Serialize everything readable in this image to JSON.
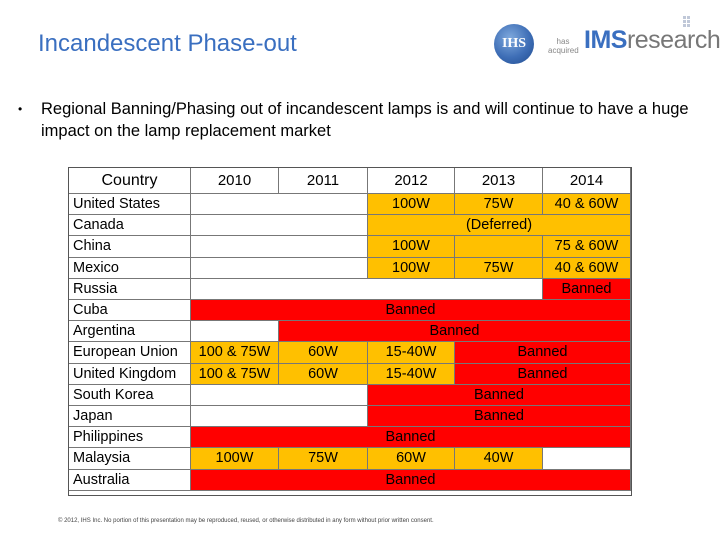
{
  "slide": {
    "title": "Incandescent Phase-out",
    "bullet": "Regional Banning/Phasing out of incandescent lamps is and will continue to have a huge impact on the lamp replacement market",
    "footer": "© 2012, IHS Inc. No portion of this presentation may be reproduced, reused, or otherwise distributed in any form without prior written consent."
  },
  "logos": {
    "ihs": "IHS",
    "has_acquired": "has acquired",
    "ims_bold": "IMS",
    "ims_rest": "research"
  },
  "table": {
    "headers": [
      "Country",
      "2010",
      "2011",
      "2012",
      "2013",
      "2014"
    ],
    "rows": [
      {
        "country": "United States",
        "cells": [
          {
            "span": 2,
            "text": "",
            "color": "white"
          },
          {
            "span": 1,
            "text": "100W",
            "color": "yellow"
          },
          {
            "span": 1,
            "text": "75W",
            "color": "yellow"
          },
          {
            "span": 1,
            "text": "40 & 60W",
            "color": "yellow"
          }
        ]
      },
      {
        "country": "Canada",
        "cells": [
          {
            "span": 2,
            "text": "",
            "color": "white"
          },
          {
            "span": 3,
            "text": "(Deferred)",
            "color": "yellow"
          }
        ]
      },
      {
        "country": "China",
        "cells": [
          {
            "span": 2,
            "text": "",
            "color": "white"
          },
          {
            "span": 1,
            "text": "100W",
            "color": "yellow"
          },
          {
            "span": 1,
            "text": "",
            "color": "yellow"
          },
          {
            "span": 1,
            "text": "75 & 60W",
            "color": "yellow"
          }
        ]
      },
      {
        "country": "Mexico",
        "cells": [
          {
            "span": 2,
            "text": "",
            "color": "white"
          },
          {
            "span": 1,
            "text": "100W",
            "color": "yellow"
          },
          {
            "span": 1,
            "text": "75W",
            "color": "yellow"
          },
          {
            "span": 1,
            "text": "40 & 60W",
            "color": "yellow"
          }
        ]
      },
      {
        "country": "Russia",
        "cells": [
          {
            "span": 4,
            "text": "",
            "color": "white"
          },
          {
            "span": 1,
            "text": "Banned",
            "color": "red"
          }
        ]
      },
      {
        "country": "Cuba",
        "cells": [
          {
            "span": 5,
            "text": "Banned",
            "color": "red"
          }
        ]
      },
      {
        "country": "Argentina",
        "cells": [
          {
            "span": 1,
            "text": "",
            "color": "white"
          },
          {
            "span": 4,
            "text": "Banned",
            "color": "red"
          }
        ]
      },
      {
        "country": "European Union",
        "cells": [
          {
            "span": 1,
            "text": "100 & 75W",
            "color": "yellow"
          },
          {
            "span": 1,
            "text": "60W",
            "color": "yellow"
          },
          {
            "span": 1,
            "text": "15-40W",
            "color": "yellow"
          },
          {
            "span": 2,
            "text": "Banned",
            "color": "red"
          }
        ]
      },
      {
        "country": "United Kingdom",
        "cells": [
          {
            "span": 1,
            "text": "100 & 75W",
            "color": "yellow"
          },
          {
            "span": 1,
            "text": "60W",
            "color": "yellow"
          },
          {
            "span": 1,
            "text": "15-40W",
            "color": "yellow"
          },
          {
            "span": 2,
            "text": "Banned",
            "color": "red"
          }
        ]
      },
      {
        "country": "South Korea",
        "cells": [
          {
            "span": 2,
            "text": "",
            "color": "white"
          },
          {
            "span": 3,
            "text": "Banned",
            "color": "red"
          }
        ]
      },
      {
        "country": "Japan",
        "cells": [
          {
            "span": 2,
            "text": "",
            "color": "white"
          },
          {
            "span": 3,
            "text": "Banned",
            "color": "red"
          }
        ]
      },
      {
        "country": "Philippines",
        "cells": [
          {
            "span": 5,
            "text": "Banned",
            "color": "red"
          }
        ]
      },
      {
        "country": "Malaysia",
        "cells": [
          {
            "span": 1,
            "text": "100W",
            "color": "yellow"
          },
          {
            "span": 1,
            "text": "75W",
            "color": "yellow"
          },
          {
            "span": 1,
            "text": "60W",
            "color": "yellow"
          },
          {
            "span": 1,
            "text": "40W",
            "color": "yellow"
          },
          {
            "span": 1,
            "text": "",
            "color": "white"
          }
        ]
      },
      {
        "country": "Australia",
        "cells": [
          {
            "span": 5,
            "text": "Banned",
            "color": "red"
          }
        ]
      }
    ]
  },
  "colors": {
    "title": "#3a6fc0",
    "yellow": "#ffc000",
    "red": "#ff0000",
    "white": "#ffffff"
  }
}
